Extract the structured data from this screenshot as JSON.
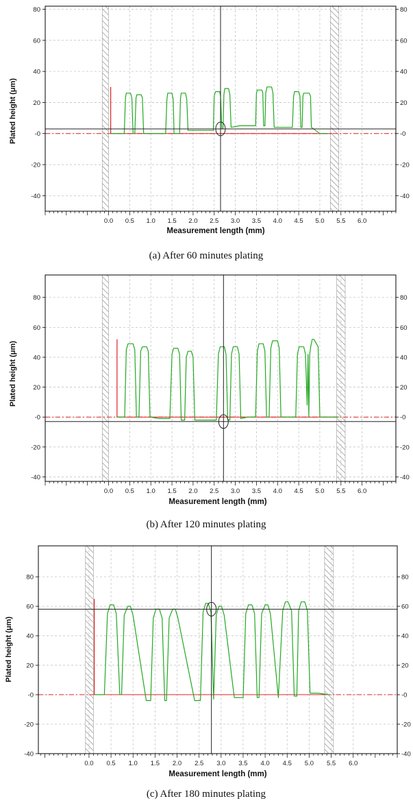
{
  "colors": {
    "profile": "#22a822",
    "reference": "#e02020",
    "cursor": "#222222",
    "grid": "#c4c4c4",
    "hatch": "#999999"
  },
  "chart_data": [
    {
      "type": "line",
      "caption": "(a) After 60 minutes plating",
      "xlabel": "Measurement length  (mm)",
      "ylabel": "Plated height  (μm)",
      "xlim": [
        -1.5,
        6.8
      ],
      "ylim": [
        -50,
        82
      ],
      "yticks": [
        -40,
        -20,
        0,
        20,
        40,
        60,
        80
      ],
      "ytick_labels": [
        "-40",
        "-20",
        "-0",
        "20",
        "40",
        "60",
        "80"
      ],
      "xticks": [
        0.0,
        0.5,
        1.0,
        1.5,
        2.0,
        2.5,
        3.0,
        3.5,
        4.0,
        4.5,
        5.0,
        5.5,
        6.0
      ],
      "xtick_labels": [
        "0.0",
        "0.5",
        "1.0",
        "1.5",
        "2.0",
        "2.5",
        "3.0",
        "3.5",
        "4.0",
        "4.5",
        "5.0",
        "5.5",
        "6.0"
      ],
      "grid": true,
      "excluded_regions": [
        [
          -0.15,
          0.0
        ],
        [
          5.25,
          5.45
        ]
      ],
      "reference_line": {
        "y": 0,
        "x_from": 0.05,
        "x_to": 5.3,
        "marker_top": 30
      },
      "cursor": {
        "x": 2.65,
        "y": 3
      },
      "series": [
        {
          "x": [
            0.05,
            0.37,
            0.4,
            0.42,
            0.52,
            0.55,
            0.58,
            0.62,
            0.65,
            0.67,
            0.77,
            0.8,
            0.83,
            1.05,
            1.3,
            1.35,
            1.38,
            1.4,
            1.5,
            1.53,
            1.55,
            1.68,
            1.7,
            1.72,
            1.82,
            1.85,
            1.88,
            2.1,
            2.3,
            2.48,
            2.5,
            2.53,
            2.63,
            2.65,
            2.68,
            2.71,
            2.73,
            2.75,
            2.84,
            2.87,
            2.9,
            3.1,
            3.3,
            3.48,
            3.5,
            3.52,
            3.63,
            3.65,
            3.67,
            3.7,
            3.72,
            3.75,
            3.86,
            3.89,
            3.92,
            4.1,
            4.35,
            4.38,
            4.4,
            4.5,
            4.53,
            4.55,
            4.58,
            4.6,
            4.62,
            4.75,
            4.78,
            4.8,
            5.0,
            5.2
          ],
          "y": [
            0,
            0,
            23,
            26,
            26,
            23,
            0,
            0,
            23,
            25,
            25,
            23,
            0,
            0,
            0,
            0,
            22,
            26,
            26,
            22,
            0,
            0,
            22,
            26,
            26,
            22,
            2,
            2,
            2,
            2,
            24,
            27,
            27,
            24,
            3,
            3,
            25,
            29,
            29,
            25,
            4,
            5,
            5,
            5,
            26,
            28,
            28,
            26,
            5,
            5,
            26,
            30,
            30,
            26,
            4,
            4,
            4,
            24,
            27,
            27,
            24,
            4,
            4,
            24,
            26,
            26,
            24,
            4,
            0,
            0
          ]
        }
      ]
    },
    {
      "type": "line",
      "caption": "(b) After 120 minutes plating",
      "xlabel": "Measurement length  (mm)",
      "ylabel": "Plated height  (μm)",
      "xlim": [
        -1.5,
        6.8
      ],
      "ylim": [
        -43,
        95
      ],
      "yticks": [
        -40,
        -20,
        0,
        20,
        40,
        60,
        80
      ],
      "ytick_labels": [
        "-40",
        "-20",
        "-0",
        "20",
        "40",
        "60",
        "80"
      ],
      "xticks": [
        0.0,
        0.5,
        1.0,
        1.5,
        2.0,
        2.5,
        3.0,
        3.5,
        4.0,
        4.5,
        5.0,
        5.5,
        6.0
      ],
      "xtick_labels": [
        "0.0",
        "0.5",
        "1.0",
        "1.5",
        "2.0",
        "2.5",
        "3.0",
        "3.5",
        "4.0",
        "4.5",
        "5.0",
        "5.5",
        "6.0"
      ],
      "grid": true,
      "excluded_regions": [
        [
          -0.15,
          0.0
        ],
        [
          5.4,
          5.6
        ]
      ],
      "reference_line": {
        "y": 0,
        "x_from": 0.2,
        "x_to": 5.45,
        "marker_top": 52
      },
      "cursor": {
        "x": 2.72,
        "y": -3
      },
      "series": [
        {
          "x": [
            0.2,
            0.38,
            0.42,
            0.46,
            0.58,
            0.62,
            0.66,
            0.72,
            0.76,
            0.8,
            0.9,
            0.94,
            0.98,
            1.2,
            1.45,
            1.5,
            1.54,
            1.64,
            1.68,
            1.72,
            1.8,
            1.84,
            1.88,
            1.96,
            2.0,
            2.04,
            2.3,
            2.55,
            2.6,
            2.64,
            2.74,
            2.78,
            2.82,
            2.87,
            2.91,
            2.95,
            3.05,
            3.09,
            3.13,
            3.3,
            3.48,
            3.52,
            3.56,
            3.66,
            3.7,
            3.74,
            3.8,
            3.84,
            3.88,
            4.0,
            4.04,
            4.08,
            4.25,
            4.43,
            4.47,
            4.51,
            4.62,
            4.66,
            4.7,
            4.72,
            4.74,
            4.76,
            4.79,
            4.82,
            4.86,
            4.96,
            5.0,
            5.04,
            5.2,
            5.45
          ],
          "y": [
            0,
            0,
            45,
            49,
            49,
            45,
            0,
            0,
            44,
            47,
            47,
            44,
            0,
            -1,
            -1,
            42,
            46,
            46,
            42,
            -2,
            -2,
            40,
            44,
            44,
            40,
            -2,
            -2,
            -2,
            42,
            47,
            47,
            42,
            -2,
            -2,
            42,
            47,
            47,
            42,
            -1,
            0,
            0,
            44,
            49,
            49,
            44,
            0,
            0,
            46,
            51,
            51,
            46,
            0,
            0,
            0,
            42,
            47,
            47,
            42,
            8,
            42,
            0,
            42,
            48,
            52,
            52,
            47,
            0,
            0,
            0,
            0
          ]
        }
      ]
    },
    {
      "type": "line",
      "caption": "(c)  After 180 minutes plating",
      "xlabel": "Measurement length  (mm)",
      "ylabel": "Plated height  (μm)",
      "xlim": [
        -1.15,
        7.0
      ],
      "ylim": [
        -40,
        101
      ],
      "yticks": [
        -40,
        -20,
        0,
        20,
        40,
        60,
        80
      ],
      "ytick_labels": [
        "-40",
        "-20",
        "-0",
        "20",
        "40",
        "60",
        "80"
      ],
      "xticks": [
        0.0,
        0.5,
        1.0,
        1.5,
        2.0,
        2.5,
        3.0,
        3.5,
        4.0,
        4.5,
        5.0,
        5.5,
        6.0
      ],
      "xtick_labels": [
        "0.0",
        "0.5",
        "1.0",
        "1.5",
        "2.0",
        "2.5",
        "3.0",
        "3.5",
        "4.0",
        "4.5",
        "5.0",
        "5.5",
        "6.0"
      ],
      "grid": true,
      "excluded_regions": [
        [
          -0.08,
          0.1
        ],
        [
          5.35,
          5.55
        ]
      ],
      "reference_line": {
        "y": 0,
        "x_from": 0.12,
        "x_to": 5.45,
        "marker_top": 65
      },
      "cursor": {
        "x": 2.78,
        "y": 58
      },
      "series": [
        {
          "x": [
            0.12,
            0.35,
            0.42,
            0.48,
            0.56,
            0.62,
            0.7,
            0.74,
            0.8,
            0.88,
            0.94,
            1.0,
            1.3,
            1.4,
            1.46,
            1.52,
            1.6,
            1.66,
            1.72,
            1.76,
            1.82,
            1.9,
            1.96,
            2.02,
            2.4,
            2.53,
            2.59,
            2.65,
            2.71,
            2.77,
            2.83,
            2.89,
            2.95,
            3.01,
            3.07,
            3.3,
            3.5,
            3.56,
            3.62,
            3.7,
            3.76,
            3.82,
            3.86,
            3.92,
            4.0,
            4.06,
            4.12,
            4.3,
            4.4,
            4.46,
            4.52,
            4.6,
            4.66,
            4.72,
            4.76,
            4.82,
            4.9,
            4.96,
            5.02,
            5.2,
            5.45
          ],
          "y": [
            0,
            0,
            55,
            61,
            61,
            55,
            0,
            0,
            54,
            60,
            60,
            54,
            -4,
            -4,
            52,
            58,
            58,
            52,
            -4,
            -4,
            52,
            58,
            58,
            52,
            -4,
            -4,
            56,
            62,
            62,
            56,
            -3,
            54,
            60,
            60,
            54,
            -2,
            -2,
            55,
            61,
            61,
            55,
            -2,
            -2,
            55,
            61,
            61,
            55,
            -2,
            57,
            63,
            63,
            57,
            -1,
            -1,
            57,
            63,
            63,
            57,
            1,
            1,
            0
          ]
        }
      ]
    }
  ]
}
